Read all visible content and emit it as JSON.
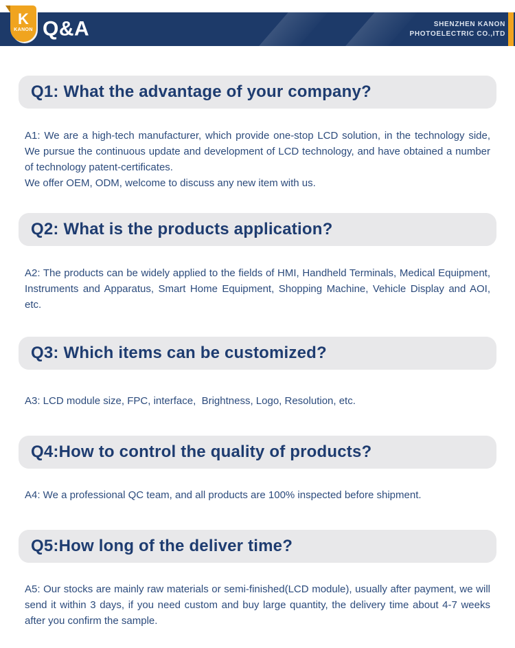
{
  "header": {
    "logo": {
      "letter": "K",
      "name": "KANON"
    },
    "title": "Q&A",
    "company": {
      "line1": "SHENZHEN KANON",
      "line2": "PHOTOELECTRIC CO.,ITD"
    }
  },
  "colors": {
    "header_navy": "#1d3a69",
    "accent_orange": "#f0a41f",
    "logo_fold_orange": "#bc7d0e",
    "question_box_bg": "#e8e8ea",
    "question_text": "#1e3c70",
    "answer_text": "#2c4b7c"
  },
  "faq": [
    {
      "question": "Q1: What the advantage of your company?",
      "answer": "A1: We are a high-tech manufacturer, which provide one-stop LCD solution, in the technology side, We pursue the continuous update and development of LCD technology, and have obtained a number of technology patent-certificates.\nWe offer OEM, ODM, welcome to discuss any new item with us."
    },
    {
      "question": "Q2: What is the products application?",
      "answer": "A2: The products can be widely applied to the fields of HMI, Handheld Terminals, Medical Equipment, Instruments and Apparatus, Smart Home Equipment, Shopping Machine, Vehicle Display and AOI, etc."
    },
    {
      "question": "Q3: Which items can be customized?",
      "answer": "A3: LCD module size, FPC, interface,  Brightness, Logo, Resolution, etc."
    },
    {
      "question": "Q4:How to control the quality of products?",
      "answer": "A4: We a professional QC team, and all products are 100% inspected before shipment."
    },
    {
      "question": "Q5:How long of the deliver time?",
      "answer": "A5: Our stocks are mainly raw materials or semi-finished(LCD module), usually after payment, we will send it within 3 days, if you need custom and buy large quantity, the delivery time about 4-7 weeks after you confirm the sample."
    }
  ]
}
